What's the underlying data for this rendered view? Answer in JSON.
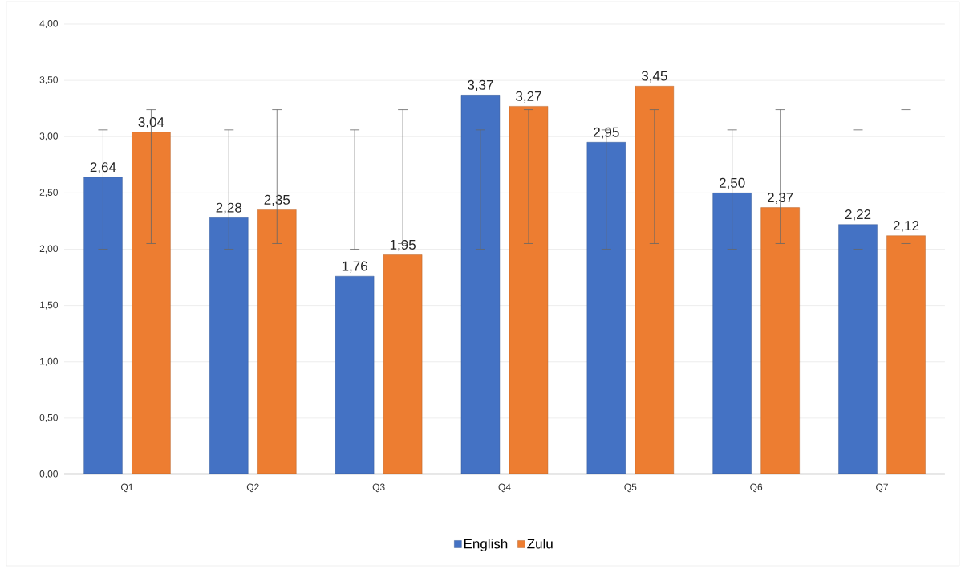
{
  "chart_data": {
    "type": "bar",
    "categories": [
      "Q1",
      "Q2",
      "Q3",
      "Q4",
      "Q5",
      "Q6",
      "Q7"
    ],
    "series": [
      {
        "name": "English",
        "color": "#4472c4",
        "values": [
          2.64,
          2.28,
          1.76,
          3.37,
          2.95,
          2.5,
          2.22
        ],
        "value_labels": [
          "2,64",
          "2,28",
          "1,76",
          "3,37",
          "2,95",
          "2,50",
          "2,22"
        ],
        "errors": [
          [
            2.0,
            3.06
          ],
          [
            2.0,
            3.06
          ],
          [
            2.0,
            3.06
          ],
          [
            2.0,
            3.06
          ],
          [
            2.0,
            3.06
          ],
          [
            2.0,
            3.06
          ],
          [
            2.0,
            3.06
          ]
        ]
      },
      {
        "name": "Zulu",
        "color": "#ed7d31",
        "values": [
          3.04,
          2.35,
          1.95,
          3.27,
          3.45,
          2.37,
          2.12
        ],
        "value_labels": [
          "3,04",
          "2,35",
          "1,95",
          "3,27",
          "3,45",
          "2,37",
          "2,12"
        ],
        "errors": [
          [
            2.05,
            3.24
          ],
          [
            2.05,
            3.24
          ],
          [
            2.05,
            3.24
          ],
          [
            2.05,
            3.24
          ],
          [
            2.05,
            3.24
          ],
          [
            2.05,
            3.24
          ],
          [
            2.05,
            3.24
          ]
        ]
      }
    ],
    "ylim": [
      0,
      4
    ],
    "yticks": [
      {
        "value": 0,
        "label": "0,00"
      },
      {
        "value": 0.5,
        "label": "0,50"
      },
      {
        "value": 1,
        "label": "1,00"
      },
      {
        "value": 1.5,
        "label": "1,50"
      },
      {
        "value": 2,
        "label": "2,00"
      },
      {
        "value": 2.5,
        "label": "2,50"
      },
      {
        "value": 3,
        "label": "3,00"
      },
      {
        "value": 3.5,
        "label": "3,50"
      },
      {
        "value": 4,
        "label": "4,00"
      }
    ],
    "grid": "y",
    "legend": "bottom"
  }
}
